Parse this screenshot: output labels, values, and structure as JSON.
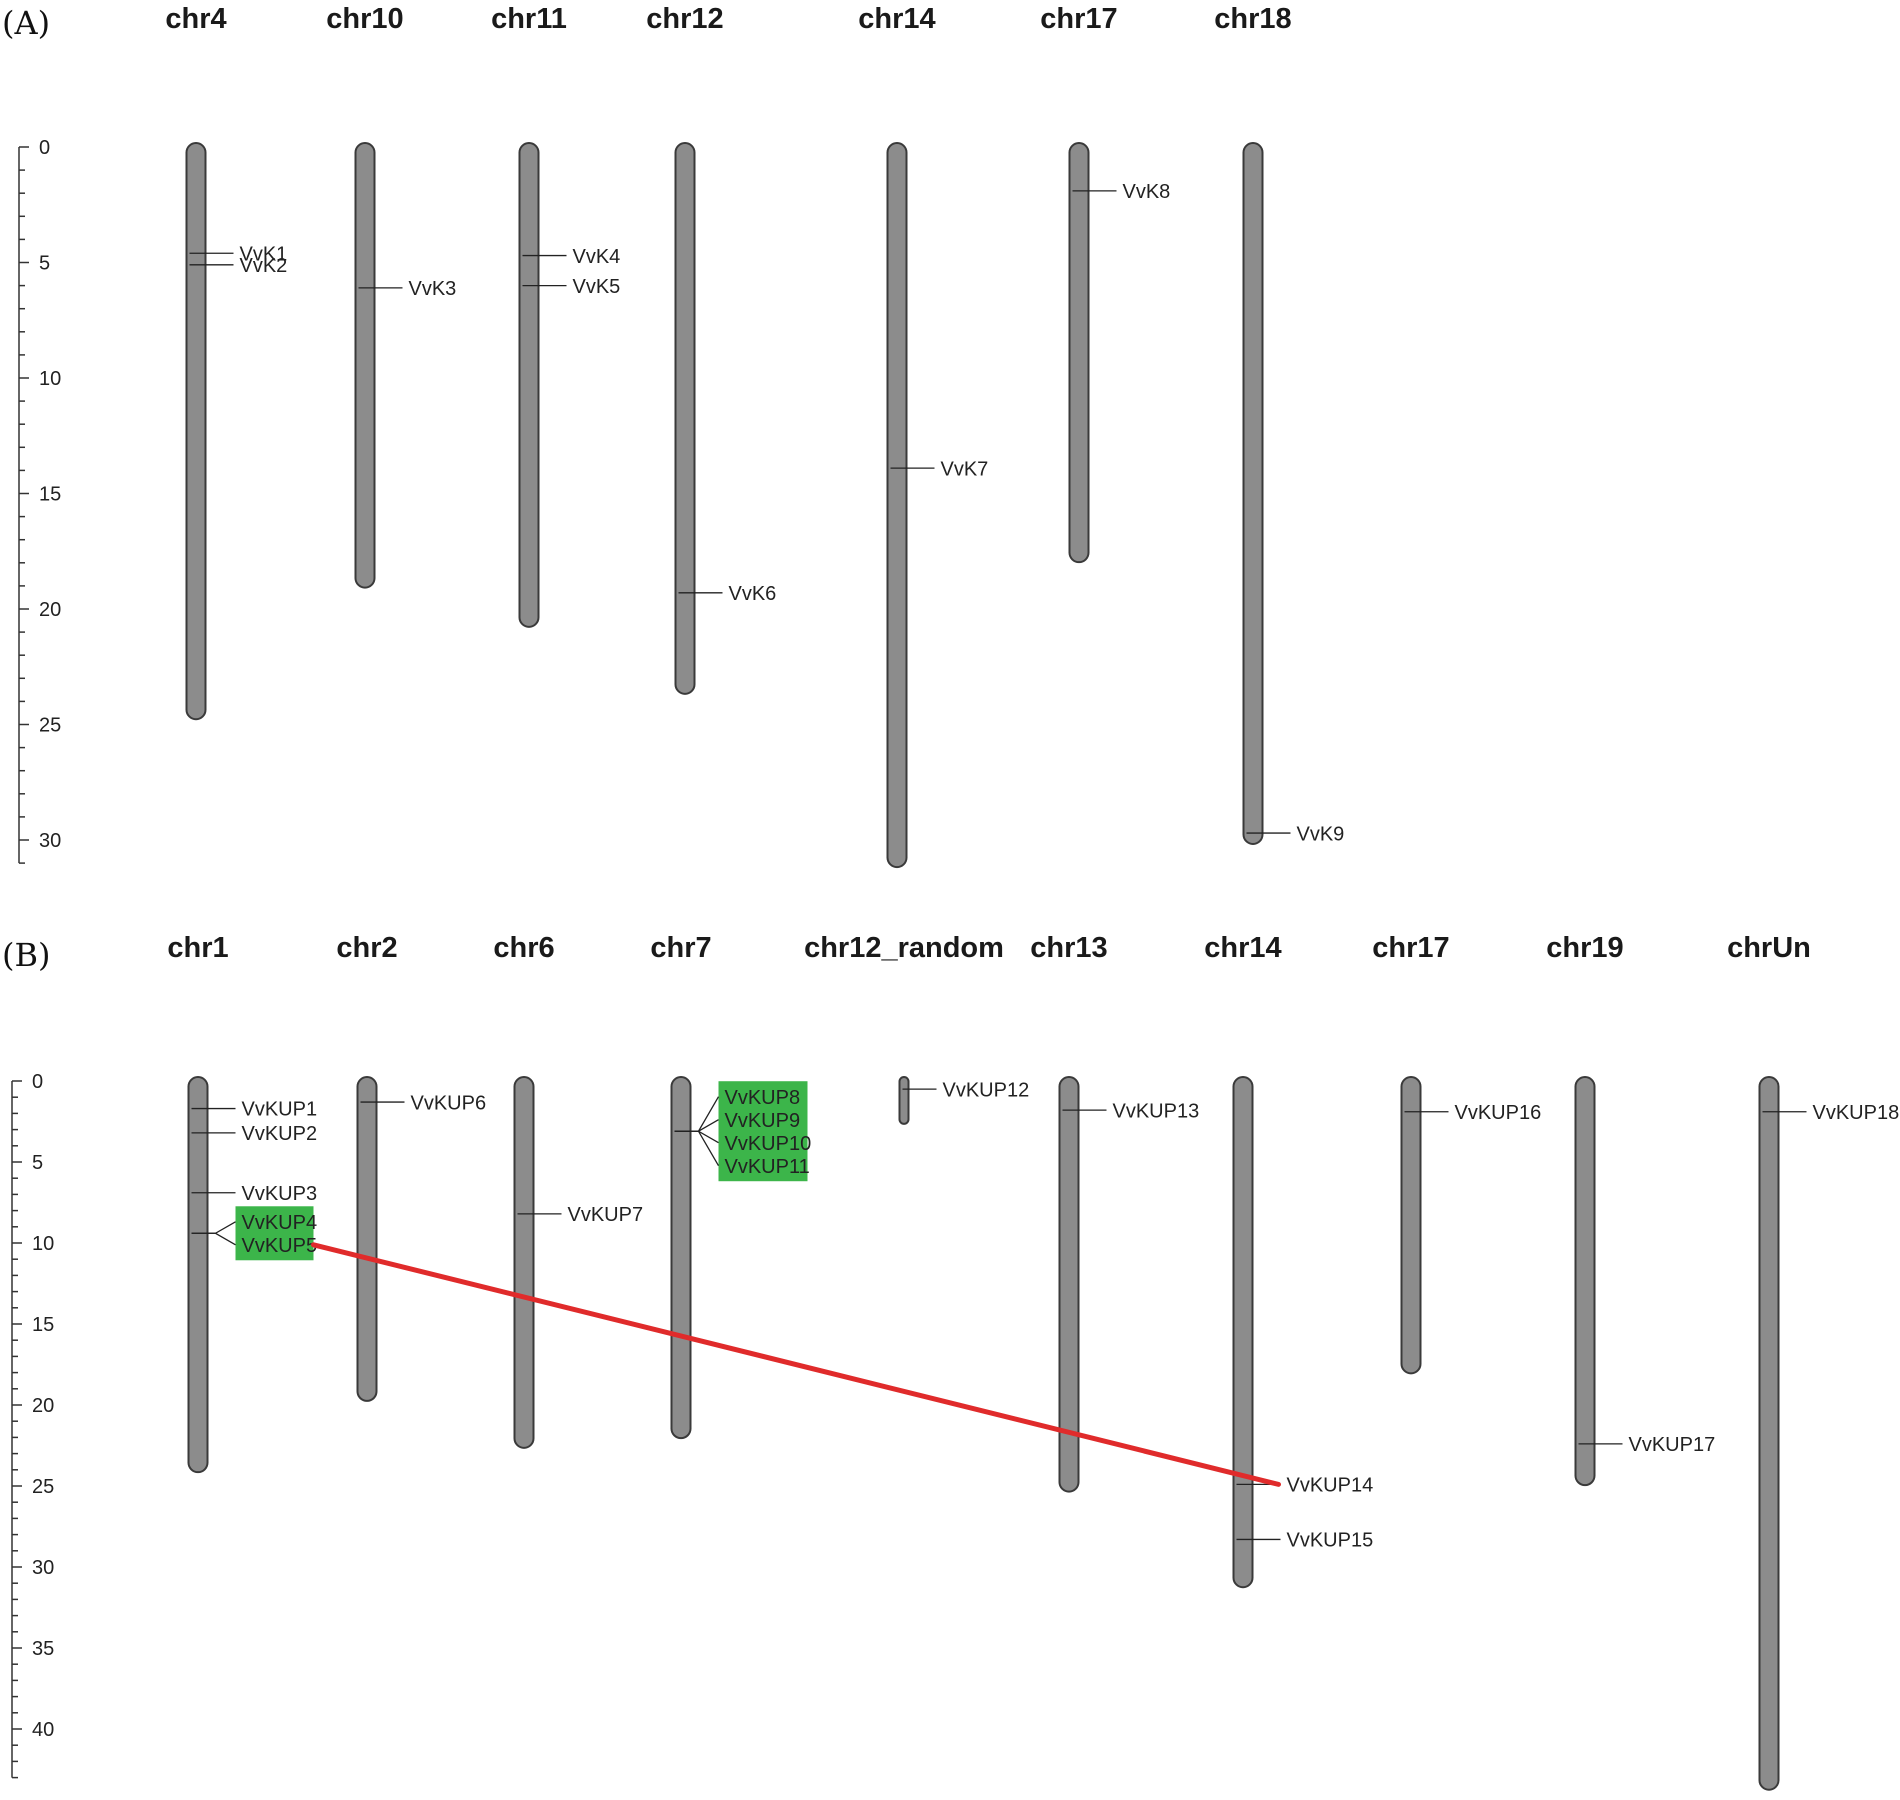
{
  "colors": {
    "chromosome_fill": "#8c8c8c",
    "highlight_box": "#3cb54a",
    "duplication_link": "#e02b2b"
  },
  "panels": [
    {
      "letter": "(A)",
      "axis_ticks": [
        "0",
        "5",
        "10",
        "15",
        "20",
        "25",
        "30"
      ],
      "axis_max": 31,
      "chromosomes": [
        {
          "name": "chr4",
          "length": 24.6,
          "genes": [
            {
              "label": "VvK1",
              "pos": 4.6
            },
            {
              "label": "VvK2",
              "pos": 5.1
            }
          ]
        },
        {
          "name": "chr10",
          "length": 18.9,
          "genes": [
            {
              "label": "VvK3",
              "pos": 6.1
            }
          ]
        },
        {
          "name": "chr11",
          "length": 20.6,
          "genes": [
            {
              "label": "VvK4",
              "pos": 4.7
            },
            {
              "label": "VvK5",
              "pos": 6.0
            }
          ]
        },
        {
          "name": "chr12",
          "length": 23.5,
          "genes": [
            {
              "label": "VvK6",
              "pos": 19.3
            }
          ]
        },
        {
          "name": "chr14",
          "length": 31.0,
          "genes": [
            {
              "label": "VvK7",
              "pos": 13.9
            }
          ]
        },
        {
          "name": "chr17",
          "length": 17.8,
          "genes": [
            {
              "label": "VvK8",
              "pos": 1.9
            }
          ]
        },
        {
          "name": "chr18",
          "length": 30.0,
          "genes": [
            {
              "label": "VvK9",
              "pos": 29.7
            }
          ]
        }
      ]
    },
    {
      "letter": "(B)",
      "axis_ticks": [
        "0",
        "5",
        "10",
        "15",
        "20",
        "25",
        "30",
        "35",
        "40"
      ],
      "axis_max": 43,
      "chromosomes": [
        {
          "name": "chr1",
          "length": 23.9,
          "genes": [
            {
              "label": "VvKUP1",
              "pos": 1.7
            },
            {
              "label": "VvKUP2",
              "pos": 3.2
            },
            {
              "label": "VvKUP3",
              "pos": 6.9
            },
            {
              "label": "VvKUP4",
              "pos": 9.4,
              "highlight": true
            },
            {
              "label": "VvKUP5",
              "pos": 9.4,
              "highlight": true
            }
          ]
        },
        {
          "name": "chr2",
          "length": 19.5,
          "genes": [
            {
              "label": "VvKUP6",
              "pos": 1.3
            }
          ]
        },
        {
          "name": "chr6",
          "length": 22.4,
          "genes": [
            {
              "label": "VvKUP7",
              "pos": 8.2
            }
          ]
        },
        {
          "name": "chr7",
          "length": 21.8,
          "genes": [
            {
              "label": "VvKUP8",
              "pos": 3.1,
              "highlight": true
            },
            {
              "label": "VvKUP9",
              "pos": 3.1,
              "highlight": true
            },
            {
              "label": "VvKUP10",
              "pos": 3.1,
              "highlight": true
            },
            {
              "label": "VvKUP11",
              "pos": 3.1,
              "highlight": true
            }
          ]
        },
        {
          "name": "chr12_random",
          "length": 2.4,
          "genes": [
            {
              "label": "VvKUP12",
              "pos": 0.5
            }
          ]
        },
        {
          "name": "chr13",
          "length": 25.1,
          "genes": [
            {
              "label": "VvKUP13",
              "pos": 1.8
            }
          ]
        },
        {
          "name": "chr14",
          "length": 31.0,
          "genes": [
            {
              "label": "VvKUP14",
              "pos": 24.9
            },
            {
              "label": "VvKUP15",
              "pos": 28.3
            }
          ]
        },
        {
          "name": "chr17",
          "length": 17.8,
          "genes": [
            {
              "label": "VvKUP16",
              "pos": 1.9
            }
          ]
        },
        {
          "name": "chr19",
          "length": 24.7,
          "genes": [
            {
              "label": "VvKUP17",
              "pos": 22.4
            }
          ]
        },
        {
          "name": "chrUn",
          "length": 43.5,
          "genes": [
            {
              "label": "VvKUP18",
              "pos": 1.9
            }
          ]
        }
      ],
      "duplication_links": [
        {
          "from": "VvKUP5",
          "to": "VvKUP14"
        }
      ]
    }
  ]
}
